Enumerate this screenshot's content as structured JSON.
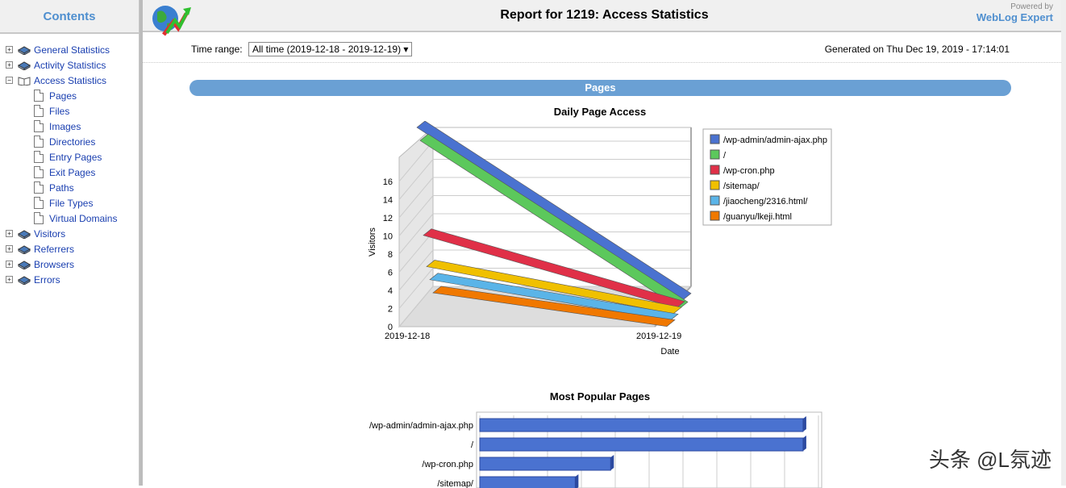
{
  "sidebar": {
    "header": "Contents",
    "items": [
      {
        "label": "General Statistics",
        "level": 0,
        "toggle": "+",
        "icon": "book-icon"
      },
      {
        "label": "Activity Statistics",
        "level": 0,
        "toggle": "+",
        "icon": "book-icon"
      },
      {
        "label": "Access Statistics",
        "level": 0,
        "toggle": "-",
        "icon": "open-book-icon"
      },
      {
        "label": "Pages",
        "level": 1,
        "icon": "page-icon"
      },
      {
        "label": "Files",
        "level": 1,
        "icon": "page-icon"
      },
      {
        "label": "Images",
        "level": 1,
        "icon": "page-icon"
      },
      {
        "label": "Directories",
        "level": 1,
        "icon": "page-icon"
      },
      {
        "label": "Entry Pages",
        "level": 1,
        "icon": "page-icon"
      },
      {
        "label": "Exit Pages",
        "level": 1,
        "icon": "page-icon"
      },
      {
        "label": "Paths",
        "level": 1,
        "icon": "page-icon"
      },
      {
        "label": "File Types",
        "level": 1,
        "icon": "page-icon"
      },
      {
        "label": "Virtual Domains",
        "level": 1,
        "icon": "page-icon"
      },
      {
        "label": "Visitors",
        "level": 0,
        "toggle": "+",
        "icon": "book-icon"
      },
      {
        "label": "Referrers",
        "level": 0,
        "toggle": "+",
        "icon": "book-icon"
      },
      {
        "label": "Browsers",
        "level": 0,
        "toggle": "+",
        "icon": "book-icon"
      },
      {
        "label": "Errors",
        "level": 0,
        "toggle": "+",
        "icon": "book-icon"
      }
    ]
  },
  "header": {
    "title": "Report for 1219: Access Statistics",
    "powered_by": "Powered by",
    "brand": "WebLog Expert"
  },
  "controls": {
    "time_range_label": "Time range:",
    "time_range_value": "All time (2019-12-18 - 2019-12-19)  ▾",
    "generated": "Generated on Thu Dec 19, 2019 - 17:14:01"
  },
  "section": {
    "title": "Pages"
  },
  "watermark": "头条 @L氛迹",
  "colors": {
    "accent": "#6aa0d4",
    "link": "#1a3fb0",
    "bar": "#4a72d0"
  },
  "chart_data": [
    {
      "type": "line",
      "title": "Daily Page Access",
      "xlabel": "Date",
      "ylabel": "Visitors",
      "x": [
        "2019-12-18",
        "2019-12-19"
      ],
      "ylim": [
        0,
        16
      ],
      "yticks": [
        0,
        2,
        4,
        6,
        8,
        10,
        12,
        14,
        16
      ],
      "legend": "right",
      "series": [
        {
          "name": "/wp-admin/admin-ajax.php",
          "color": "#4a72d0",
          "values": [
            20,
            1
          ]
        },
        {
          "name": "/",
          "color": "#5cc85c",
          "values": [
            19,
            0.5
          ]
        },
        {
          "name": "/wp-cron.php",
          "color": "#e03048",
          "values": [
            9,
            1
          ]
        },
        {
          "name": "/sitemap/",
          "color": "#f0c000",
          "values": [
            6,
            0.8
          ]
        },
        {
          "name": "/jiaocheng/2316.html/",
          "color": "#5ab4e8",
          "values": [
            5,
            0.5
          ]
        },
        {
          "name": "/guanyu/lkeji.html",
          "color": "#f07800",
          "values": [
            4,
            0.3
          ]
        }
      ]
    },
    {
      "type": "bar",
      "title": "Most Popular Pages",
      "categories": [
        "/wp-admin/admin-ajax.php",
        "/",
        "/wp-cron.php",
        "/sitemap/"
      ],
      "values": [
        21,
        21,
        8.5,
        6.2
      ],
      "xlim": [
        0,
        22
      ]
    }
  ]
}
